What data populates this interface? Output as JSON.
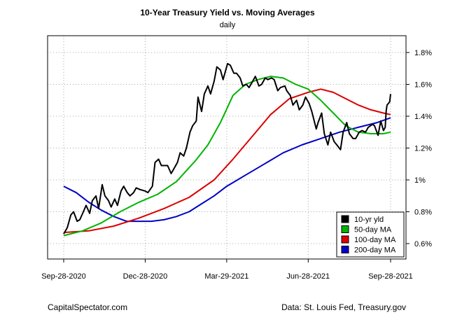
{
  "chart_data": {
    "type": "line",
    "title": "10-Year Treasury Yield vs. Moving Averages",
    "subtitle": "daily",
    "x_ticks": [
      "Sep-28-2020",
      "Dec-28-2020",
      "Mar-29-2021",
      "Jun-28-2021",
      "Sep-28-2021"
    ],
    "x_tick_dates": [
      "2020-09-28",
      "2020-12-28",
      "2021-03-29",
      "2021-06-28",
      "2021-09-28"
    ],
    "y_ticks": [
      0.6,
      0.8,
      1.0,
      1.2,
      1.4,
      1.6,
      1.8
    ],
    "y_tick_labels": [
      "0.6%",
      "0.8%",
      "1%",
      "1.2%",
      "1.4%",
      "1.6%",
      "1.8%"
    ],
    "xlim": [
      "2020-09-28",
      "2021-09-28"
    ],
    "ylim": [
      0.5,
      1.9
    ],
    "grid": true,
    "legend_position": "bottom-right",
    "series": [
      {
        "name": "10-yr yld",
        "color": "#000000",
        "points": [
          [
            "2020-09-28",
            0.66
          ],
          [
            "2020-10-02",
            0.7
          ],
          [
            "2020-10-06",
            0.78
          ],
          [
            "2020-10-09",
            0.8
          ],
          [
            "2020-10-13",
            0.74
          ],
          [
            "2020-10-16",
            0.75
          ],
          [
            "2020-10-20",
            0.8
          ],
          [
            "2020-10-23",
            0.84
          ],
          [
            "2020-10-27",
            0.79
          ],
          [
            "2020-10-30",
            0.87
          ],
          [
            "2020-11-03",
            0.9
          ],
          [
            "2020-11-06",
            0.82
          ],
          [
            "2020-11-10",
            0.97
          ],
          [
            "2020-11-13",
            0.9
          ],
          [
            "2020-11-17",
            0.87
          ],
          [
            "2020-11-20",
            0.83
          ],
          [
            "2020-11-24",
            0.88
          ],
          [
            "2020-11-27",
            0.84
          ],
          [
            "2020-12-01",
            0.93
          ],
          [
            "2020-12-04",
            0.96
          ],
          [
            "2020-12-08",
            0.92
          ],
          [
            "2020-12-11",
            0.9
          ],
          [
            "2020-12-15",
            0.92
          ],
          [
            "2020-12-18",
            0.95
          ],
          [
            "2020-12-22",
            0.94
          ],
          [
            "2020-12-28",
            0.93
          ],
          [
            "2020-12-31",
            0.92
          ],
          [
            "2021-01-05",
            0.96
          ],
          [
            "2021-01-08",
            1.11
          ],
          [
            "2021-01-12",
            1.13
          ],
          [
            "2021-01-15",
            1.09
          ],
          [
            "2021-01-19",
            1.09
          ],
          [
            "2021-01-22",
            1.09
          ],
          [
            "2021-01-26",
            1.04
          ],
          [
            "2021-01-29",
            1.07
          ],
          [
            "2021-02-02",
            1.11
          ],
          [
            "2021-02-05",
            1.17
          ],
          [
            "2021-02-09",
            1.15
          ],
          [
            "2021-02-12",
            1.2
          ],
          [
            "2021-02-16",
            1.3
          ],
          [
            "2021-02-19",
            1.34
          ],
          [
            "2021-02-23",
            1.37
          ],
          [
            "2021-02-25",
            1.52
          ],
          [
            "2021-03-01",
            1.43
          ],
          [
            "2021-03-04",
            1.54
          ],
          [
            "2021-03-08",
            1.59
          ],
          [
            "2021-03-11",
            1.54
          ],
          [
            "2021-03-15",
            1.62
          ],
          [
            "2021-03-18",
            1.71
          ],
          [
            "2021-03-22",
            1.69
          ],
          [
            "2021-03-25",
            1.63
          ],
          [
            "2021-03-30",
            1.73
          ],
          [
            "2021-04-02",
            1.72
          ],
          [
            "2021-04-06",
            1.67
          ],
          [
            "2021-04-09",
            1.67
          ],
          [
            "2021-04-13",
            1.64
          ],
          [
            "2021-04-16",
            1.59
          ],
          [
            "2021-04-20",
            1.6
          ],
          [
            "2021-04-23",
            1.58
          ],
          [
            "2021-04-27",
            1.62
          ],
          [
            "2021-04-30",
            1.65
          ],
          [
            "2021-05-04",
            1.59
          ],
          [
            "2021-05-07",
            1.6
          ],
          [
            "2021-05-11",
            1.64
          ],
          [
            "2021-05-14",
            1.63
          ],
          [
            "2021-05-18",
            1.64
          ],
          [
            "2021-05-21",
            1.63
          ],
          [
            "2021-05-25",
            1.56
          ],
          [
            "2021-05-28",
            1.58
          ],
          [
            "2021-06-02",
            1.59
          ],
          [
            "2021-06-04",
            1.56
          ],
          [
            "2021-06-08",
            1.53
          ],
          [
            "2021-06-11",
            1.47
          ],
          [
            "2021-06-15",
            1.5
          ],
          [
            "2021-06-18",
            1.44
          ],
          [
            "2021-06-22",
            1.47
          ],
          [
            "2021-06-25",
            1.52
          ],
          [
            "2021-06-29",
            1.48
          ],
          [
            "2021-07-02",
            1.43
          ],
          [
            "2021-07-07",
            1.32
          ],
          [
            "2021-07-09",
            1.36
          ],
          [
            "2021-07-13",
            1.42
          ],
          [
            "2021-07-16",
            1.29
          ],
          [
            "2021-07-20",
            1.22
          ],
          [
            "2021-07-23",
            1.3
          ],
          [
            "2021-07-27",
            1.24
          ],
          [
            "2021-07-30",
            1.22
          ],
          [
            "2021-08-03",
            1.19
          ],
          [
            "2021-08-06",
            1.3
          ],
          [
            "2021-08-10",
            1.36
          ],
          [
            "2021-08-13",
            1.29
          ],
          [
            "2021-08-17",
            1.26
          ],
          [
            "2021-08-20",
            1.26
          ],
          [
            "2021-08-24",
            1.3
          ],
          [
            "2021-08-27",
            1.31
          ],
          [
            "2021-08-31",
            1.3
          ],
          [
            "2021-09-03",
            1.33
          ],
          [
            "2021-09-08",
            1.35
          ],
          [
            "2021-09-10",
            1.34
          ],
          [
            "2021-09-14",
            1.28
          ],
          [
            "2021-09-17",
            1.37
          ],
          [
            "2021-09-20",
            1.31
          ],
          [
            "2021-09-22",
            1.33
          ],
          [
            "2021-09-23",
            1.43
          ],
          [
            "2021-09-24",
            1.47
          ],
          [
            "2021-09-27",
            1.49
          ],
          [
            "2021-09-28",
            1.54
          ]
        ]
      },
      {
        "name": "50-day MA",
        "color": "#00b400",
        "points": [
          [
            "2020-09-28",
            0.65
          ],
          [
            "2020-10-19",
            0.68
          ],
          [
            "2020-11-09",
            0.73
          ],
          [
            "2020-11-30",
            0.8
          ],
          [
            "2020-12-21",
            0.86
          ],
          [
            "2021-01-11",
            0.91
          ],
          [
            "2021-02-01",
            0.99
          ],
          [
            "2021-02-22",
            1.12
          ],
          [
            "2021-03-08",
            1.22
          ],
          [
            "2021-03-22",
            1.36
          ],
          [
            "2021-04-05",
            1.53
          ],
          [
            "2021-04-19",
            1.6
          ],
          [
            "2021-05-03",
            1.63
          ],
          [
            "2021-05-17",
            1.65
          ],
          [
            "2021-05-31",
            1.64
          ],
          [
            "2021-06-14",
            1.6
          ],
          [
            "2021-06-28",
            1.57
          ],
          [
            "2021-07-12",
            1.5
          ],
          [
            "2021-07-26",
            1.42
          ],
          [
            "2021-08-09",
            1.34
          ],
          [
            "2021-08-23",
            1.3
          ],
          [
            "2021-09-06",
            1.29
          ],
          [
            "2021-09-20",
            1.29
          ],
          [
            "2021-09-28",
            1.3
          ]
        ]
      },
      {
        "name": "100-day MA",
        "color": "#dc0000",
        "points": [
          [
            "2020-09-28",
            0.67
          ],
          [
            "2020-10-26",
            0.68
          ],
          [
            "2020-11-23",
            0.71
          ],
          [
            "2020-12-21",
            0.76
          ],
          [
            "2021-01-18",
            0.82
          ],
          [
            "2021-02-15",
            0.89
          ],
          [
            "2021-03-15",
            1.0
          ],
          [
            "2021-04-05",
            1.13
          ],
          [
            "2021-04-26",
            1.27
          ],
          [
            "2021-05-17",
            1.41
          ],
          [
            "2021-06-07",
            1.51
          ],
          [
            "2021-06-28",
            1.55
          ],
          [
            "2021-07-12",
            1.57
          ],
          [
            "2021-07-26",
            1.55
          ],
          [
            "2021-08-09",
            1.51
          ],
          [
            "2021-08-23",
            1.47
          ],
          [
            "2021-09-06",
            1.44
          ],
          [
            "2021-09-20",
            1.42
          ],
          [
            "2021-09-28",
            1.41
          ]
        ]
      },
      {
        "name": "200-day MA",
        "color": "#0000c8",
        "points": [
          [
            "2020-09-28",
            0.96
          ],
          [
            "2020-10-12",
            0.92
          ],
          [
            "2020-10-26",
            0.86
          ],
          [
            "2020-11-09",
            0.81
          ],
          [
            "2020-11-23",
            0.77
          ],
          [
            "2020-12-07",
            0.74
          ],
          [
            "2020-12-21",
            0.74
          ],
          [
            "2021-01-04",
            0.74
          ],
          [
            "2021-01-18",
            0.75
          ],
          [
            "2021-02-01",
            0.77
          ],
          [
            "2021-02-15",
            0.8
          ],
          [
            "2021-03-01",
            0.85
          ],
          [
            "2021-03-15",
            0.9
          ],
          [
            "2021-03-29",
            0.96
          ],
          [
            "2021-04-19",
            1.03
          ],
          [
            "2021-05-10",
            1.1
          ],
          [
            "2021-05-31",
            1.17
          ],
          [
            "2021-06-21",
            1.22
          ],
          [
            "2021-07-12",
            1.26
          ],
          [
            "2021-08-02",
            1.3
          ],
          [
            "2021-08-23",
            1.33
          ],
          [
            "2021-09-13",
            1.36
          ],
          [
            "2021-09-28",
            1.39
          ]
        ]
      }
    ]
  },
  "footer": {
    "left": "CapitalSpectator.com",
    "right": "Data: St. Louis Fed, Treasury.gov"
  }
}
